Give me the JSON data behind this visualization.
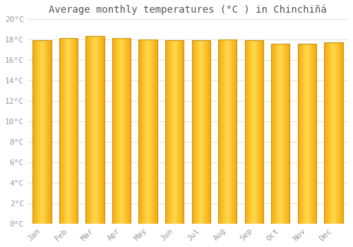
{
  "title": "Average monthly temperatures (°C ) in Chinchiñá",
  "months": [
    "Jan",
    "Feb",
    "Mar",
    "Apr",
    "May",
    "Jun",
    "Jul",
    "Aug",
    "Sep",
    "Oct",
    "Nov",
    "Dec"
  ],
  "temperatures": [
    17.9,
    18.1,
    18.3,
    18.1,
    18.0,
    17.9,
    17.9,
    18.0,
    17.9,
    17.6,
    17.6,
    17.7
  ],
  "ylim": [
    0,
    20
  ],
  "yticks": [
    0,
    2,
    4,
    6,
    8,
    10,
    12,
    14,
    16,
    18,
    20
  ],
  "bar_color_center": "#FFD040",
  "bar_color_edge": "#F5A800",
  "bar_border_color": "#C8960A",
  "background_color": "#FFFFFF",
  "grid_color": "#E0E0E0",
  "text_color": "#999999",
  "title_color": "#555555",
  "title_fontsize": 10,
  "tick_fontsize": 8,
  "bar_width": 0.7
}
